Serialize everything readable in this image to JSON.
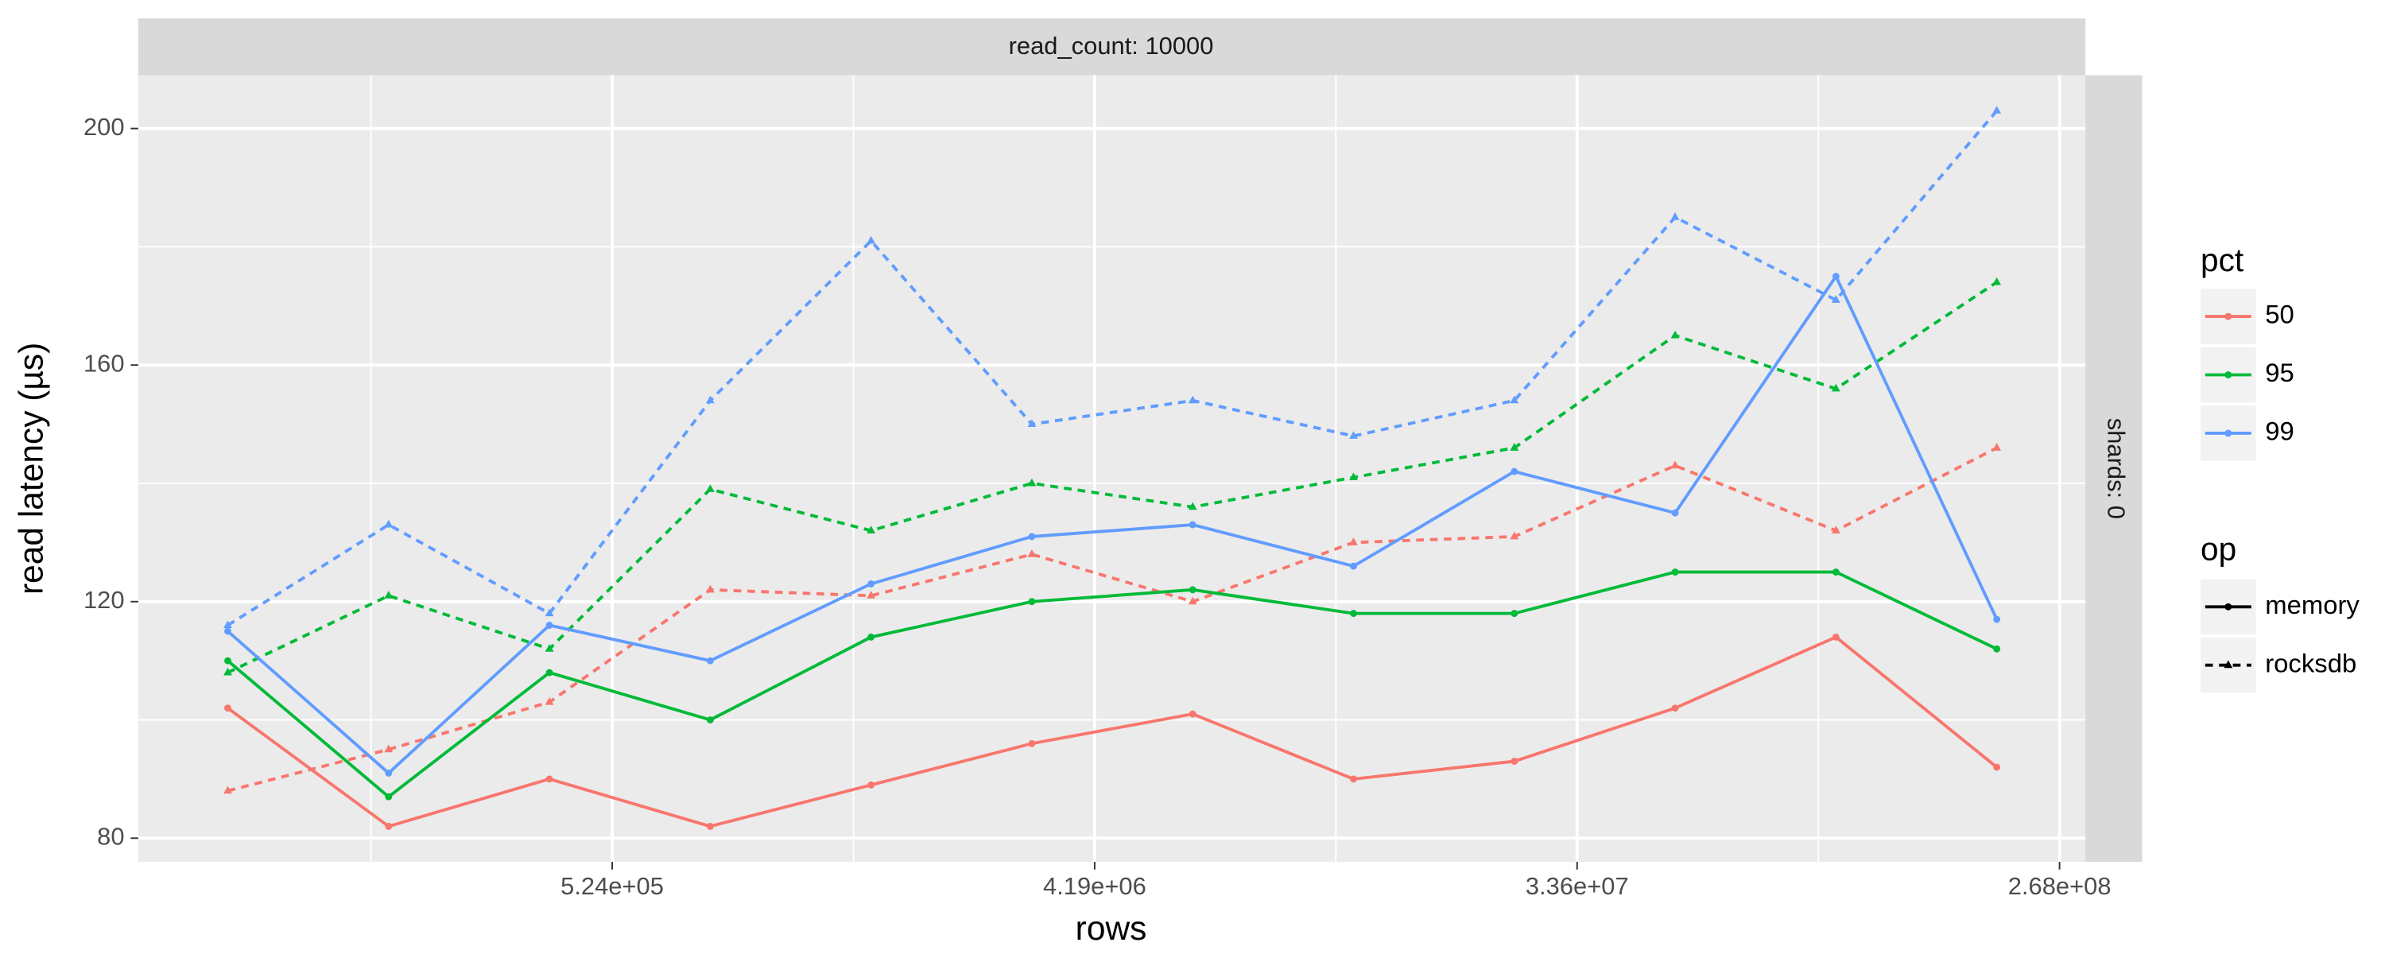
{
  "chart_data": {
    "type": "line",
    "facet_top": "read_count: 10000",
    "facet_right": "shards: 0",
    "xlabel": "rows",
    "ylabel": "read latency (µs)",
    "log_x": true,
    "grid": true,
    "legend_titles": {
      "color": "pct",
      "linetype": "op"
    },
    "x": [
      100000,
      200000,
      400000,
      800000,
      1600000,
      3200000,
      6400000,
      12800000,
      25600000,
      51200000,
      102400000,
      204800000
    ],
    "xlim": [
      68000,
      300000000
    ],
    "xticks": [
      {
        "value": 524288,
        "label": "5.24e+05"
      },
      {
        "value": 4194304,
        "label": "4.19e+06"
      },
      {
        "value": 33554432,
        "label": "3.36e+07"
      },
      {
        "value": 268435456,
        "label": "2.68e+08"
      }
    ],
    "ylim": [
      76,
      209
    ],
    "yticks": [
      80,
      120,
      160,
      200
    ],
    "series": [
      {
        "pct": "50",
        "op": "memory",
        "color": "#f8766d",
        "dashed": false,
        "marker": "circle",
        "values": [
          102,
          82,
          90,
          82,
          89,
          96,
          101,
          90,
          93,
          102,
          114,
          92
        ]
      },
      {
        "pct": "50",
        "op": "rocksdb",
        "color": "#f8766d",
        "dashed": true,
        "marker": "triangle",
        "values": [
          88,
          95,
          103,
          122,
          121,
          128,
          120,
          130,
          131,
          143,
          132,
          146
        ]
      },
      {
        "pct": "95",
        "op": "memory",
        "color": "#00ba38",
        "dashed": false,
        "marker": "circle",
        "values": [
          110,
          87,
          108,
          100,
          114,
          120,
          122,
          118,
          118,
          125,
          125,
          112
        ]
      },
      {
        "pct": "95",
        "op": "rocksdb",
        "color": "#00ba38",
        "dashed": true,
        "marker": "triangle",
        "values": [
          108,
          121,
          112,
          139,
          132,
          140,
          136,
          141,
          146,
          165,
          156,
          174
        ]
      },
      {
        "pct": "99",
        "op": "memory",
        "color": "#619cff",
        "dashed": false,
        "marker": "circle",
        "values": [
          115,
          91,
          116,
          110,
          123,
          131,
          133,
          126,
          142,
          135,
          175,
          117
        ]
      },
      {
        "pct": "99",
        "op": "rocksdb",
        "color": "#619cff",
        "dashed": true,
        "marker": "triangle",
        "values": [
          116,
          133,
          118,
          154,
          181,
          150,
          154,
          148,
          154,
          185,
          171,
          203
        ]
      }
    ]
  }
}
